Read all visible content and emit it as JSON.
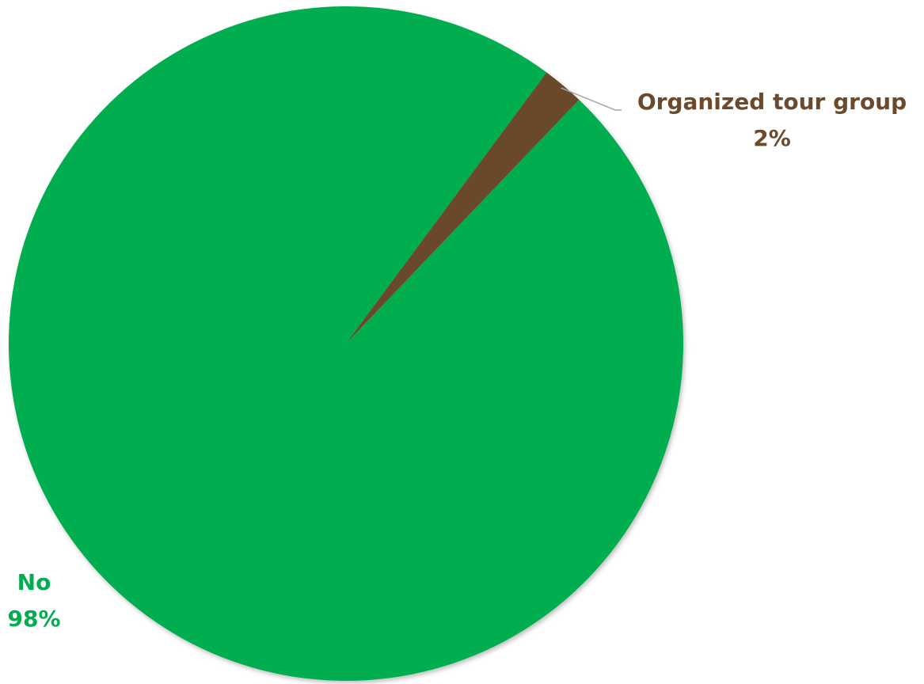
{
  "chart_data": {
    "type": "pie",
    "slices": [
      {
        "label": "No",
        "value": 98,
        "value_text": "98%",
        "color": "#00AE4F"
      },
      {
        "label": "Organized tour group",
        "value": 2,
        "value_text": "2%",
        "color": "#6A4A2A"
      }
    ],
    "units": "%",
    "legend": "none",
    "data_labels": "outside with leader line"
  },
  "colors": {
    "background": "#ffffff",
    "leader_line": "#a6a6a6"
  }
}
